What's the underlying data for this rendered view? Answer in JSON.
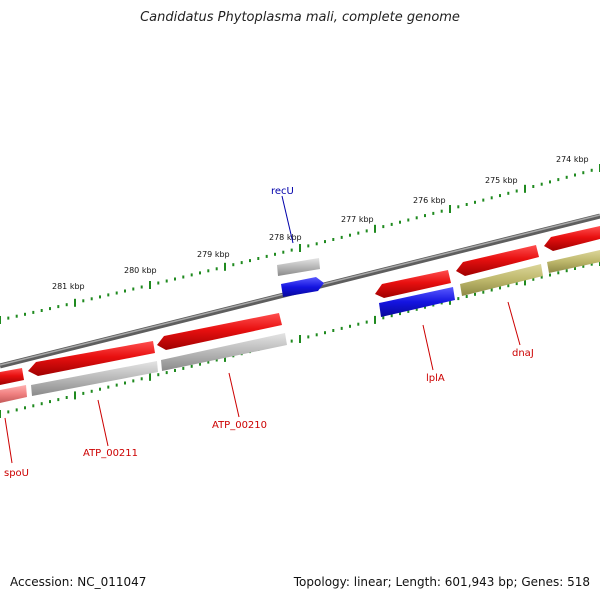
{
  "title": "Candidatus Phytoplasma mali, complete genome",
  "footer": {
    "accession": "Accession: NC_011047",
    "summary": "Topology: linear; Length: 601,943 bp; Genes: 518"
  },
  "colors": {
    "backbone": "#7a7a7a",
    "tick": "#1f8a1f",
    "cds_red": "#e81010",
    "cds_gray": "#b8b8b8",
    "cds_blue": "#1414e0",
    "cds_olive": "#bdb76b",
    "cds_pink": "#f08080",
    "label_red": "#cc0000",
    "label_blue": "#0000aa"
  },
  "ticks": [
    {
      "label": "274 kbp",
      "kbp": 274
    },
    {
      "label": "275 kbp",
      "kbp": 275
    },
    {
      "label": "276 kbp",
      "kbp": 276
    },
    {
      "label": "277 kbp",
      "kbp": 277
    },
    {
      "label": "278 kbp",
      "kbp": 278
    },
    {
      "label": "279 kbp",
      "kbp": 279
    },
    {
      "label": "280 kbp",
      "kbp": 280
    },
    {
      "label": "281 kbp",
      "kbp": 281
    }
  ],
  "genes": [
    {
      "name": "spoU",
      "strand": "-",
      "color": "cds_red",
      "label_color": "label_red"
    },
    {
      "name": "ATP_00211",
      "strand": "-",
      "color": "cds_red",
      "label_color": "label_red"
    },
    {
      "name": "ATP_00210",
      "strand": "-",
      "color": "cds_red",
      "label_color": "label_red"
    },
    {
      "name": "recU",
      "strand": "+",
      "color": "cds_blue",
      "label_color": "label_blue"
    },
    {
      "name": "lplA",
      "strand": "-",
      "color": "cds_red",
      "label_color": "label_red"
    },
    {
      "name": "dnaJ",
      "strand": "-",
      "color": "cds_red",
      "label_color": "label_red"
    }
  ]
}
